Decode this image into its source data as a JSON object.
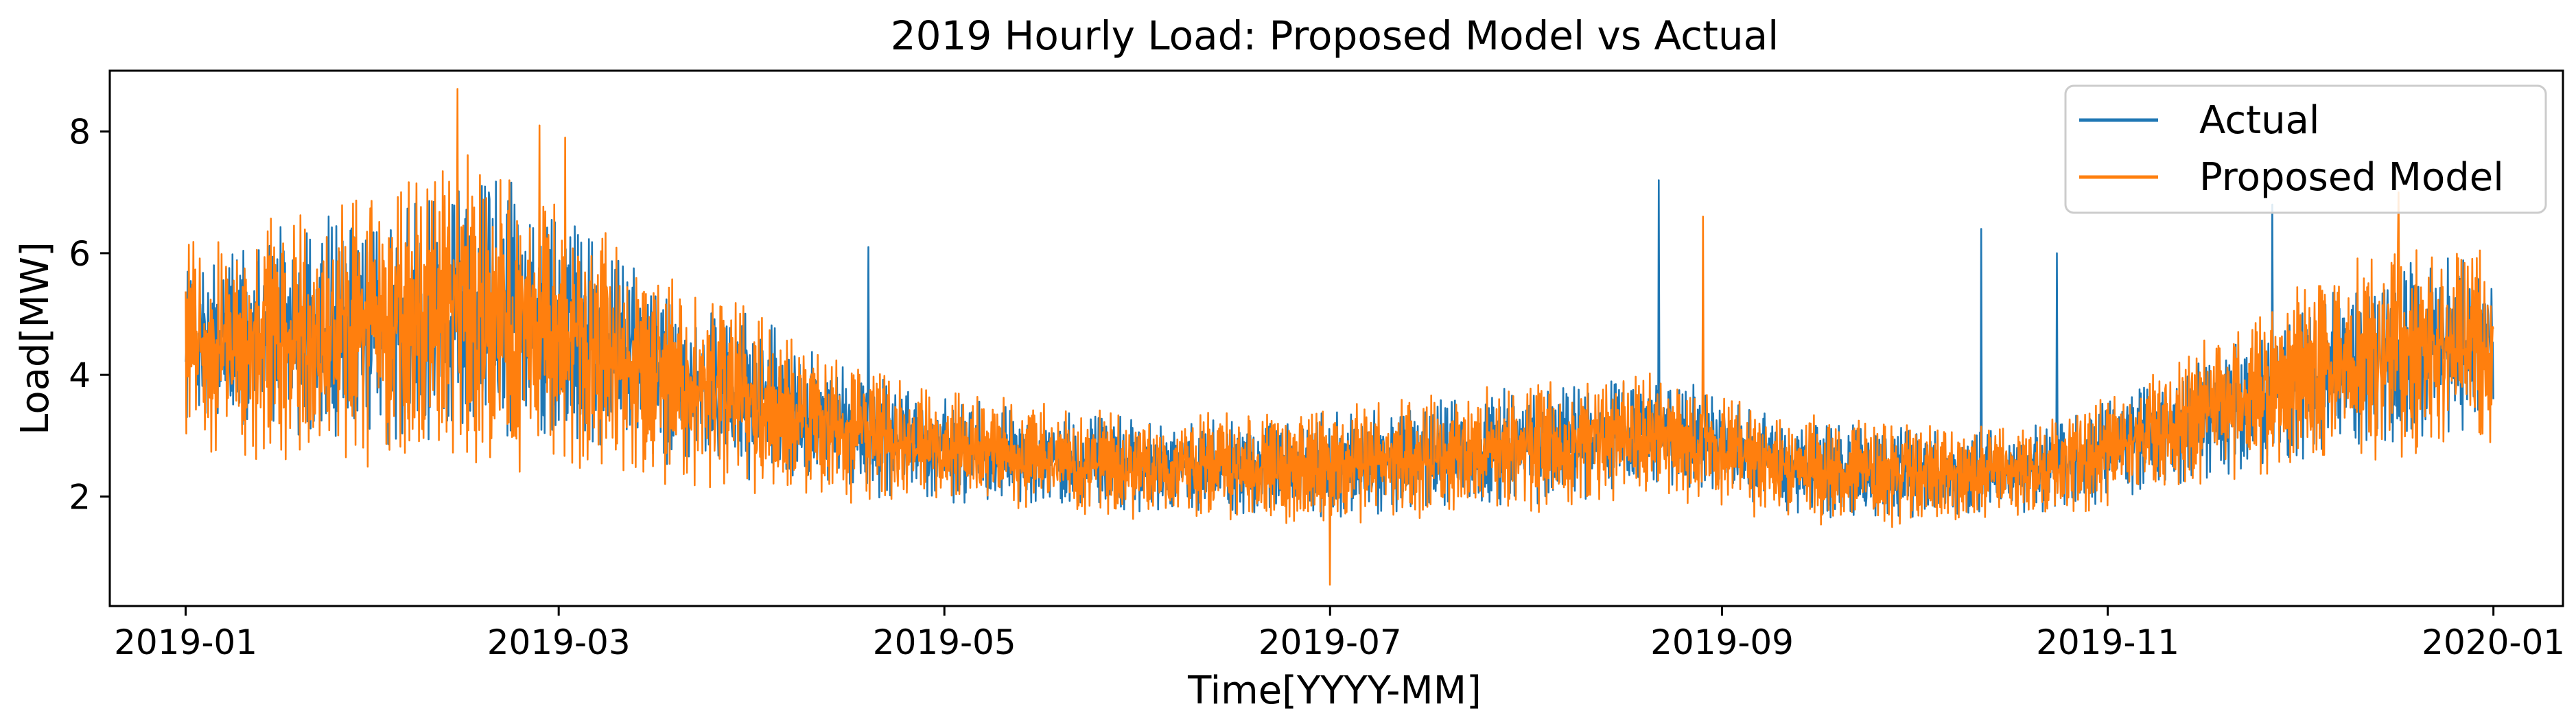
{
  "chart_data": {
    "type": "line",
    "title": "2019 Hourly Load: Proposed Model vs Actual",
    "xlabel": "Time[YYYY-MM]",
    "ylabel": "Load[MW]",
    "xlim": [
      -12,
      376
    ],
    "ylim": [
      0.2,
      9.0
    ],
    "x_unit": "day of year (0 = 2019-01-01)",
    "x_ticks": [
      {
        "value": 0,
        "label": "2019-01"
      },
      {
        "value": 59,
        "label": "2019-03"
      },
      {
        "value": 120,
        "label": "2019-05"
      },
      {
        "value": 181,
        "label": "2019-07"
      },
      {
        "value": 243,
        "label": "2019-09"
      },
      {
        "value": 304,
        "label": "2019-11"
      },
      {
        "value": 365,
        "label": "2020-01"
      }
    ],
    "y_ticks": [
      {
        "value": 2,
        "label": "2"
      },
      {
        "value": 4,
        "label": "4"
      },
      {
        "value": 6,
        "label": "6"
      },
      {
        "value": 8,
        "label": "8"
      }
    ],
    "grid": false,
    "legend_position": "top-right",
    "series": [
      {
        "name": "Actual",
        "color": "#1f77b4",
        "envelope": {
          "x": [
            0,
            10,
            20,
            30,
            40,
            50,
            60,
            70,
            80,
            90,
            100,
            110,
            120,
            130,
            140,
            150,
            160,
            170,
            180,
            190,
            200,
            210,
            220,
            230,
            240,
            250,
            260,
            270,
            280,
            290,
            300,
            310,
            320,
            330,
            340,
            350,
            360,
            365
          ],
          "center": [
            4.6,
            4.6,
            4.7,
            4.8,
            5.0,
            5.1,
            4.8,
            4.3,
            3.9,
            3.6,
            3.3,
            3.0,
            2.8,
            2.7,
            2.6,
            2.55,
            2.5,
            2.5,
            2.5,
            2.6,
            2.7,
            2.8,
            2.9,
            3.0,
            2.9,
            2.6,
            2.4,
            2.4,
            2.4,
            2.4,
            2.6,
            3.0,
            3.3,
            3.7,
            4.1,
            4.4,
            4.5,
            4.6
          ],
          "amplitude": [
            1.4,
            1.5,
            1.6,
            1.8,
            1.9,
            1.9,
            1.7,
            1.4,
            1.3,
            1.2,
            1.0,
            0.9,
            0.8,
            0.7,
            0.7,
            0.7,
            0.7,
            0.7,
            0.8,
            0.8,
            0.8,
            0.9,
            0.9,
            0.9,
            0.8,
            0.7,
            0.7,
            0.7,
            0.6,
            0.6,
            0.7,
            0.8,
            0.9,
            1.1,
            1.2,
            1.3,
            1.3,
            1.2
          ]
        },
        "spikes": [
          [
            48,
            7.0
          ],
          [
            52,
            6.8
          ],
          [
            108,
            6.1
          ],
          [
            233,
            7.2
          ],
          [
            284,
            6.4
          ],
          [
            296,
            6.0
          ],
          [
            330,
            6.8
          ]
        ],
        "range": [
          1.6,
          7.2
        ]
      },
      {
        "name": "Proposed Model",
        "color": "#ff7f0e",
        "envelope": {
          "x": [
            0,
            10,
            20,
            30,
            40,
            50,
            60,
            70,
            80,
            90,
            100,
            110,
            120,
            130,
            140,
            150,
            160,
            170,
            180,
            190,
            200,
            210,
            220,
            230,
            240,
            250,
            260,
            270,
            280,
            290,
            300,
            310,
            320,
            330,
            340,
            350,
            360,
            365
          ],
          "center": [
            4.5,
            4.5,
            4.6,
            4.8,
            5.0,
            5.0,
            4.7,
            4.2,
            3.8,
            3.5,
            3.2,
            3.0,
            2.8,
            2.7,
            2.6,
            2.5,
            2.5,
            2.5,
            2.5,
            2.6,
            2.7,
            2.8,
            2.9,
            3.0,
            2.8,
            2.5,
            2.4,
            2.4,
            2.4,
            2.4,
            2.6,
            3.0,
            3.4,
            3.8,
            4.2,
            4.4,
            4.4,
            4.5
          ],
          "amplitude": [
            1.6,
            1.7,
            1.9,
            2.1,
            2.3,
            2.3,
            2.1,
            1.7,
            1.5,
            1.4,
            1.1,
            1.0,
            0.9,
            0.8,
            0.8,
            0.8,
            0.8,
            0.8,
            0.9,
            0.9,
            0.9,
            1.0,
            1.0,
            1.0,
            0.9,
            0.8,
            0.8,
            0.8,
            0.7,
            0.7,
            0.8,
            0.9,
            1.1,
            1.3,
            1.5,
            1.6,
            1.6,
            1.5
          ]
        },
        "spikes": [
          [
            43,
            8.7
          ],
          [
            56,
            8.1
          ],
          [
            60,
            7.9
          ],
          [
            181,
            0.55
          ],
          [
            240,
            6.6
          ],
          [
            350,
            7.0
          ]
        ],
        "range": [
          0.55,
          8.7
        ]
      }
    ]
  }
}
